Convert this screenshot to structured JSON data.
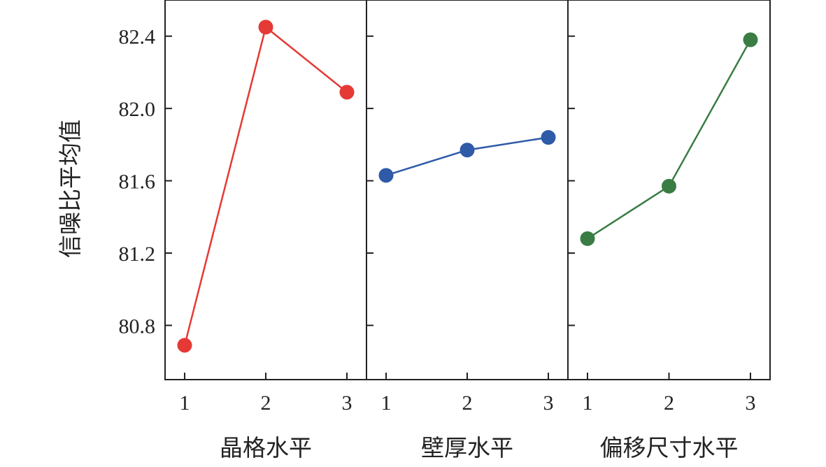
{
  "chart_data": {
    "type": "line",
    "ylabel": "信噪比平均值",
    "ylim": [
      80.5,
      82.6
    ],
    "yticks": [
      80.8,
      81.2,
      81.6,
      82.0,
      82.4
    ],
    "ytick_labels": [
      "80.8",
      "81.2",
      "81.6",
      "82.0",
      "82.4"
    ],
    "grid": false,
    "panels": [
      {
        "xlabel": "晶格水平",
        "categories": [
          "1",
          "2",
          "3"
        ],
        "values": [
          80.69,
          82.45,
          82.09
        ],
        "color": "#e53935"
      },
      {
        "xlabel": "壁厚水平",
        "categories": [
          "1",
          "2",
          "3"
        ],
        "values": [
          81.63,
          81.77,
          81.84
        ],
        "color": "#2e5aa8"
      },
      {
        "xlabel": "偏移尺寸水平",
        "categories": [
          "1",
          "2",
          "3"
        ],
        "values": [
          81.28,
          81.57,
          82.38
        ],
        "color": "#3a7d44"
      }
    ]
  }
}
